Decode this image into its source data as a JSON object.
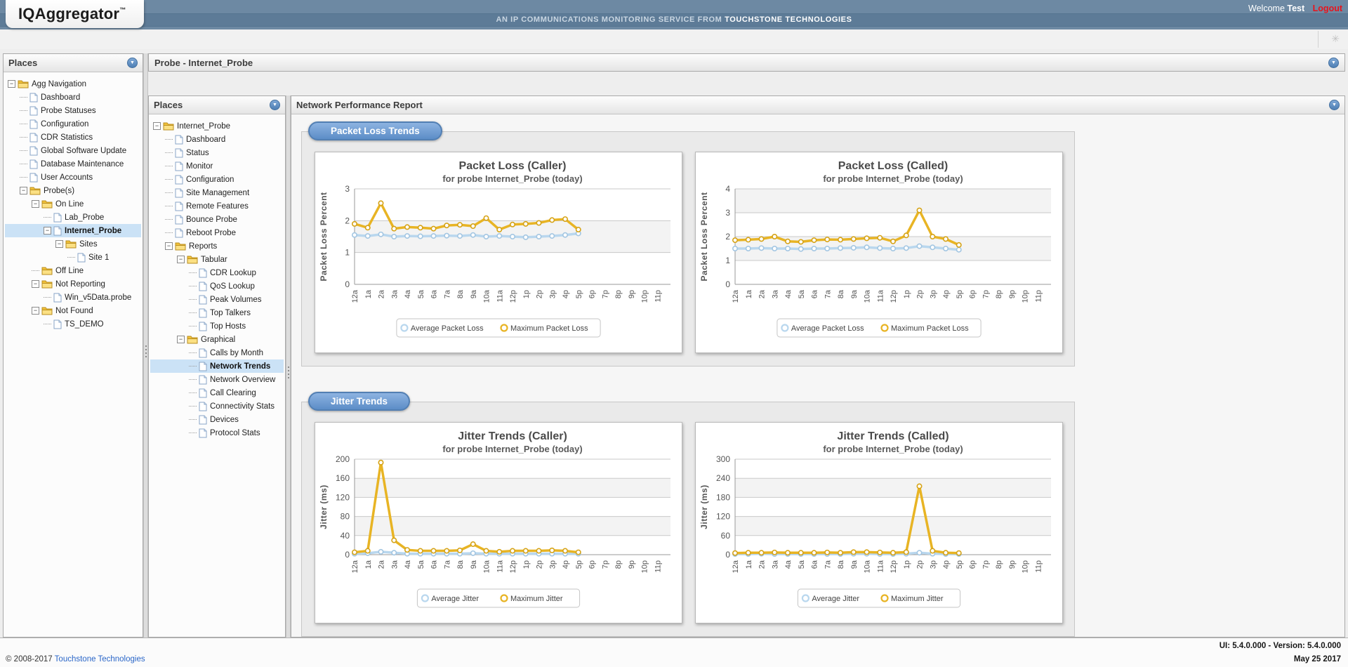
{
  "header": {
    "logo": "IQAggregator",
    "logo_tm": "™",
    "banner": "AN IP COMMUNICATIONS MONITORING SERVICE FROM",
    "banner_brand": "TOUCHSTONE TECHNOLOGIES",
    "welcome": "Welcome",
    "user": "Test",
    "logout": "Logout"
  },
  "left_panel": {
    "title": "Places"
  },
  "probe_bar": {
    "title": "Probe - Internet_Probe"
  },
  "inner_panel": {
    "title": "Places"
  },
  "report": {
    "title": "Network Performance Report",
    "sections": [
      {
        "label": "Packet Loss Trends"
      },
      {
        "label": "Jitter Trends"
      }
    ]
  },
  "trees": {
    "left": [
      {
        "label": "Agg Navigation",
        "type": "folder",
        "level": 0,
        "expander": true
      },
      {
        "label": "Dashboard",
        "type": "page",
        "level": 1
      },
      {
        "label": "Probe Statuses",
        "type": "page",
        "level": 1
      },
      {
        "label": "Configuration",
        "type": "page",
        "level": 1
      },
      {
        "label": "CDR Statistics",
        "type": "page",
        "level": 1
      },
      {
        "label": "Global Software Update",
        "type": "page",
        "level": 1
      },
      {
        "label": "Database Maintenance",
        "type": "page",
        "level": 1
      },
      {
        "label": "User Accounts",
        "type": "page",
        "level": 1
      },
      {
        "label": "Probe(s)",
        "type": "folder",
        "level": 1,
        "expander": true
      },
      {
        "label": "On Line",
        "type": "folder",
        "level": 2,
        "expander": true
      },
      {
        "label": "Lab_Probe",
        "type": "page",
        "level": 3
      },
      {
        "label": "Internet_Probe",
        "type": "page",
        "level": 3,
        "expander": true,
        "selected": true
      },
      {
        "label": "Sites",
        "type": "folder",
        "level": 4,
        "expander": true
      },
      {
        "label": "Site 1",
        "type": "page",
        "level": 5
      },
      {
        "label": "Off Line",
        "type": "folder",
        "level": 2
      },
      {
        "label": "Not Reporting",
        "type": "folder",
        "level": 2,
        "expander": true
      },
      {
        "label": "Win_v5Data.probe",
        "type": "page",
        "level": 3
      },
      {
        "label": "Not Found",
        "type": "folder",
        "level": 2,
        "expander": true
      },
      {
        "label": "TS_DEMO",
        "type": "page",
        "level": 3
      }
    ],
    "inner": [
      {
        "label": "Internet_Probe",
        "type": "folder",
        "level": 0,
        "expander": true
      },
      {
        "label": "Dashboard",
        "type": "page",
        "level": 1
      },
      {
        "label": "Status",
        "type": "page",
        "level": 1
      },
      {
        "label": "Monitor",
        "type": "page",
        "level": 1
      },
      {
        "label": "Configuration",
        "type": "page",
        "level": 1
      },
      {
        "label": "Site Management",
        "type": "page",
        "level": 1
      },
      {
        "label": "Remote Features",
        "type": "page",
        "level": 1
      },
      {
        "label": "Bounce Probe",
        "type": "page",
        "level": 1
      },
      {
        "label": "Reboot Probe",
        "type": "page",
        "level": 1
      },
      {
        "label": "Reports",
        "type": "folder",
        "level": 1,
        "expander": true
      },
      {
        "label": "Tabular",
        "type": "folder",
        "level": 2,
        "expander": true
      },
      {
        "label": "CDR Lookup",
        "type": "page",
        "level": 3
      },
      {
        "label": "QoS Lookup",
        "type": "page",
        "level": 3
      },
      {
        "label": "Peak Volumes",
        "type": "page",
        "level": 3
      },
      {
        "label": "Top Talkers",
        "type": "page",
        "level": 3
      },
      {
        "label": "Top Hosts",
        "type": "page",
        "level": 3
      },
      {
        "label": "Graphical",
        "type": "folder",
        "level": 2,
        "expander": true
      },
      {
        "label": "Calls by Month",
        "type": "page",
        "level": 3
      },
      {
        "label": "Network Trends",
        "type": "page",
        "level": 3,
        "selected": true
      },
      {
        "label": "Network Overview",
        "type": "page",
        "level": 3
      },
      {
        "label": "Call Clearing",
        "type": "page",
        "level": 3
      },
      {
        "label": "Connectivity Stats",
        "type": "page",
        "level": 3
      },
      {
        "label": "Devices",
        "type": "page",
        "level": 3
      },
      {
        "label": "Protocol Stats",
        "type": "page",
        "level": 3
      }
    ]
  },
  "chart_data": [
    {
      "type": "line",
      "title": "Packet Loss (Caller)",
      "subtitle": "for probe Internet_Probe (today)",
      "ylabel": "Packet Loss Percent",
      "ylim": [
        0,
        3
      ],
      "ystep": 1,
      "grid": true,
      "legend_position": "bottom",
      "categories": [
        "12a",
        "1a",
        "2a",
        "3a",
        "4a",
        "5a",
        "6a",
        "7a",
        "8a",
        "9a",
        "10a",
        "11a",
        "12p",
        "1p",
        "2p",
        "3p",
        "4p",
        "5p",
        "6p",
        "7p",
        "8p",
        "9p",
        "10p",
        "11p"
      ],
      "series": [
        {
          "name": "Average Packet Loss",
          "color": "#b9d7ee",
          "marker": "#a3c6e2",
          "values": [
            1.55,
            1.52,
            1.57,
            1.5,
            1.52,
            1.51,
            1.52,
            1.53,
            1.52,
            1.55,
            1.5,
            1.52,
            1.5,
            1.48,
            1.5,
            1.52,
            1.55,
            1.6
          ]
        },
        {
          "name": "Maximum Packet Loss",
          "color": "#e8b424",
          "marker": "#d6a316",
          "values": [
            1.9,
            1.78,
            2.55,
            1.75,
            1.8,
            1.78,
            1.75,
            1.85,
            1.87,
            1.83,
            2.08,
            1.72,
            1.88,
            1.9,
            1.93,
            2.02,
            2.05,
            1.72
          ]
        }
      ]
    },
    {
      "type": "line",
      "title": "Packet Loss (Called)",
      "subtitle": "for probe Internet_Probe (today)",
      "ylabel": "Packet Loss Percent",
      "ylim": [
        0,
        4
      ],
      "ystep": 1,
      "grid": true,
      "legend_position": "bottom",
      "categories": [
        "12a",
        "1a",
        "2a",
        "3a",
        "4a",
        "5a",
        "6a",
        "7a",
        "8a",
        "9a",
        "10a",
        "11a",
        "12p",
        "1p",
        "2p",
        "3p",
        "4p",
        "5p",
        "6p",
        "7p",
        "8p",
        "9p",
        "10p",
        "11p"
      ],
      "series": [
        {
          "name": "Average Packet Loss",
          "color": "#b9d7ee",
          "marker": "#a3c6e2",
          "values": [
            1.5,
            1.5,
            1.52,
            1.5,
            1.5,
            1.48,
            1.5,
            1.5,
            1.52,
            1.53,
            1.55,
            1.52,
            1.5,
            1.52,
            1.6,
            1.55,
            1.5,
            1.45
          ]
        },
        {
          "name": "Maximum Packet Loss",
          "color": "#e8b424",
          "marker": "#d6a316",
          "values": [
            1.85,
            1.87,
            1.9,
            2.0,
            1.8,
            1.78,
            1.85,
            1.88,
            1.87,
            1.9,
            1.93,
            1.95,
            1.8,
            2.05,
            3.1,
            2.0,
            1.9,
            1.65
          ]
        }
      ]
    },
    {
      "type": "line",
      "title": "Jitter Trends (Caller)",
      "subtitle": "for probe Internet_Probe (today)",
      "ylabel": "Jitter (ms)",
      "ylim": [
        0,
        200
      ],
      "ystep": 40,
      "grid": true,
      "legend_position": "bottom",
      "categories": [
        "12a",
        "1a",
        "2a",
        "3a",
        "4a",
        "5a",
        "6a",
        "7a",
        "8a",
        "9a",
        "10a",
        "11a",
        "12p",
        "1p",
        "2p",
        "3p",
        "4p",
        "5p",
        "6p",
        "7p",
        "8p",
        "9p",
        "10p",
        "11p"
      ],
      "series": [
        {
          "name": "Average Jitter",
          "color": "#b9d7ee",
          "marker": "#a3c6e2",
          "values": [
            2,
            3,
            6,
            4,
            2,
            2,
            2,
            2,
            2,
            3,
            2,
            2,
            2,
            2,
            2,
            2,
            2,
            2
          ]
        },
        {
          "name": "Maximum Jitter",
          "color": "#e8b424",
          "marker": "#d6a316",
          "values": [
            5,
            8,
            193,
            30,
            10,
            8,
            8,
            8,
            9,
            22,
            8,
            6,
            8,
            8,
            8,
            9,
            8,
            5
          ]
        }
      ]
    },
    {
      "type": "line",
      "title": "Jitter Trends (Called)",
      "subtitle": "for probe Internet_Probe (today)",
      "ylabel": "Jitter (ms)",
      "ylim": [
        0,
        300
      ],
      "ystep": 60,
      "grid": true,
      "legend_position": "bottom",
      "categories": [
        "12a",
        "1a",
        "2a",
        "3a",
        "4a",
        "5a",
        "6a",
        "7a",
        "8a",
        "9a",
        "10a",
        "11a",
        "12p",
        "1p",
        "2p",
        "3p",
        "4p",
        "5p",
        "6p",
        "7p",
        "8p",
        "9p",
        "10p",
        "11p"
      ],
      "series": [
        {
          "name": "Average Jitter",
          "color": "#b9d7ee",
          "marker": "#a3c6e2",
          "values": [
            2,
            2,
            3,
            2,
            2,
            2,
            2,
            2,
            2,
            3,
            3,
            2,
            2,
            3,
            6,
            3,
            2,
            2
          ]
        },
        {
          "name": "Maximum Jitter",
          "color": "#e8b424",
          "marker": "#d6a316",
          "values": [
            5,
            6,
            6,
            7,
            6,
            6,
            6,
            7,
            6,
            8,
            8,
            7,
            6,
            8,
            215,
            12,
            6,
            5
          ]
        }
      ]
    }
  ],
  "colors": {
    "header_bar": "#6d89a3",
    "banner_strip": "#5d7b97",
    "accent_blue": "#5c8dc7",
    "selected_row": "#cbe2f6",
    "logout_red": "#e8141c",
    "link_blue": "#2a66c8",
    "series_avg": "#b9d7ee",
    "series_max": "#e8b424",
    "grid": "#c9c9c9",
    "band": "#f3f3f3"
  },
  "icons": {
    "chevron_down": "▼",
    "spinner": "✳",
    "expander": "−"
  },
  "footer": {
    "copyright": "© 2008-2017",
    "company": "Touchstone Technologies",
    "version": "UI: 5.4.0.000 - Version: 5.4.0.000",
    "date": "May 25 2017"
  }
}
